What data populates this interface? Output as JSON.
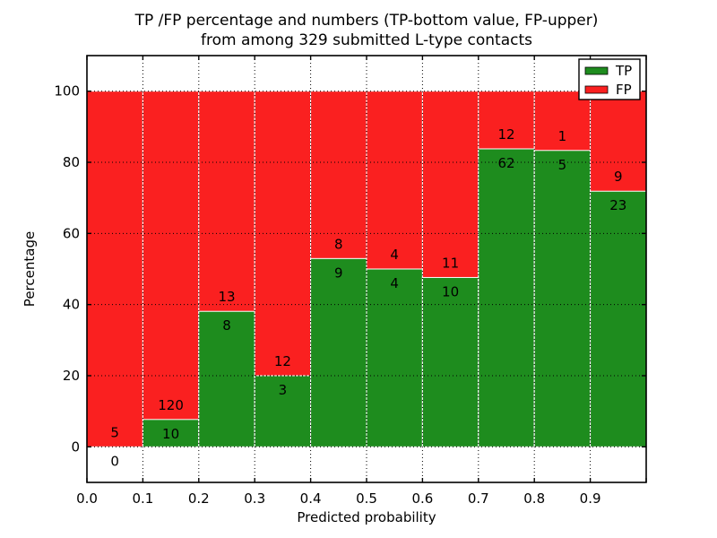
{
  "title": {
    "line1": "TP /FP percentage and numbers (TP-bottom value, FP-upper)",
    "line2": "from among 329 submitted L-type contacts"
  },
  "chart_data": {
    "type": "bar",
    "stacked": true,
    "normalized_to_percent": true,
    "title": "TP /FP percentage and numbers (TP-bottom value, FP-upper) from among 329 submitted L-type contacts",
    "xlabel": "Predicted probability",
    "ylabel": "Percentage",
    "bin_edges": [
      0.0,
      0.1,
      0.2,
      0.3,
      0.4,
      0.5,
      0.6,
      0.7,
      0.8,
      0.9,
      1.0
    ],
    "categories": [
      "0.0-0.1",
      "0.1-0.2",
      "0.2-0.3",
      "0.3-0.4",
      "0.4-0.5",
      "0.5-0.6",
      "0.6-0.7",
      "0.7-0.8",
      "0.8-0.9",
      "0.9-1.0"
    ],
    "series": [
      {
        "name": "TP",
        "color": "#1e8c1e",
        "counts": [
          0,
          10,
          8,
          3,
          9,
          4,
          10,
          62,
          5,
          23
        ]
      },
      {
        "name": "FP",
        "color": "#fa2020",
        "counts": [
          5,
          120,
          13,
          12,
          8,
          4,
          11,
          12,
          1,
          9
        ]
      }
    ],
    "tp_percent": [
      0.0,
      7.7,
      38.1,
      20.0,
      52.9,
      50.0,
      47.6,
      83.8,
      83.3,
      71.9
    ],
    "total_contacts": 329,
    "xticks": [
      "0.0",
      "0.1",
      "0.2",
      "0.3",
      "0.4",
      "0.5",
      "0.6",
      "0.7",
      "0.8",
      "0.9"
    ],
    "yticks": [
      0,
      20,
      40,
      60,
      80,
      100
    ],
    "xlim": [
      0.0,
      1.0
    ],
    "ylim": [
      -10,
      110
    ],
    "grid": "dotted black, drawn above bars",
    "legend": {
      "position": "upper right",
      "entries": [
        {
          "label": "TP",
          "color": "#1e8c1e"
        },
        {
          "label": "FP",
          "color": "#fa2020"
        }
      ]
    }
  }
}
